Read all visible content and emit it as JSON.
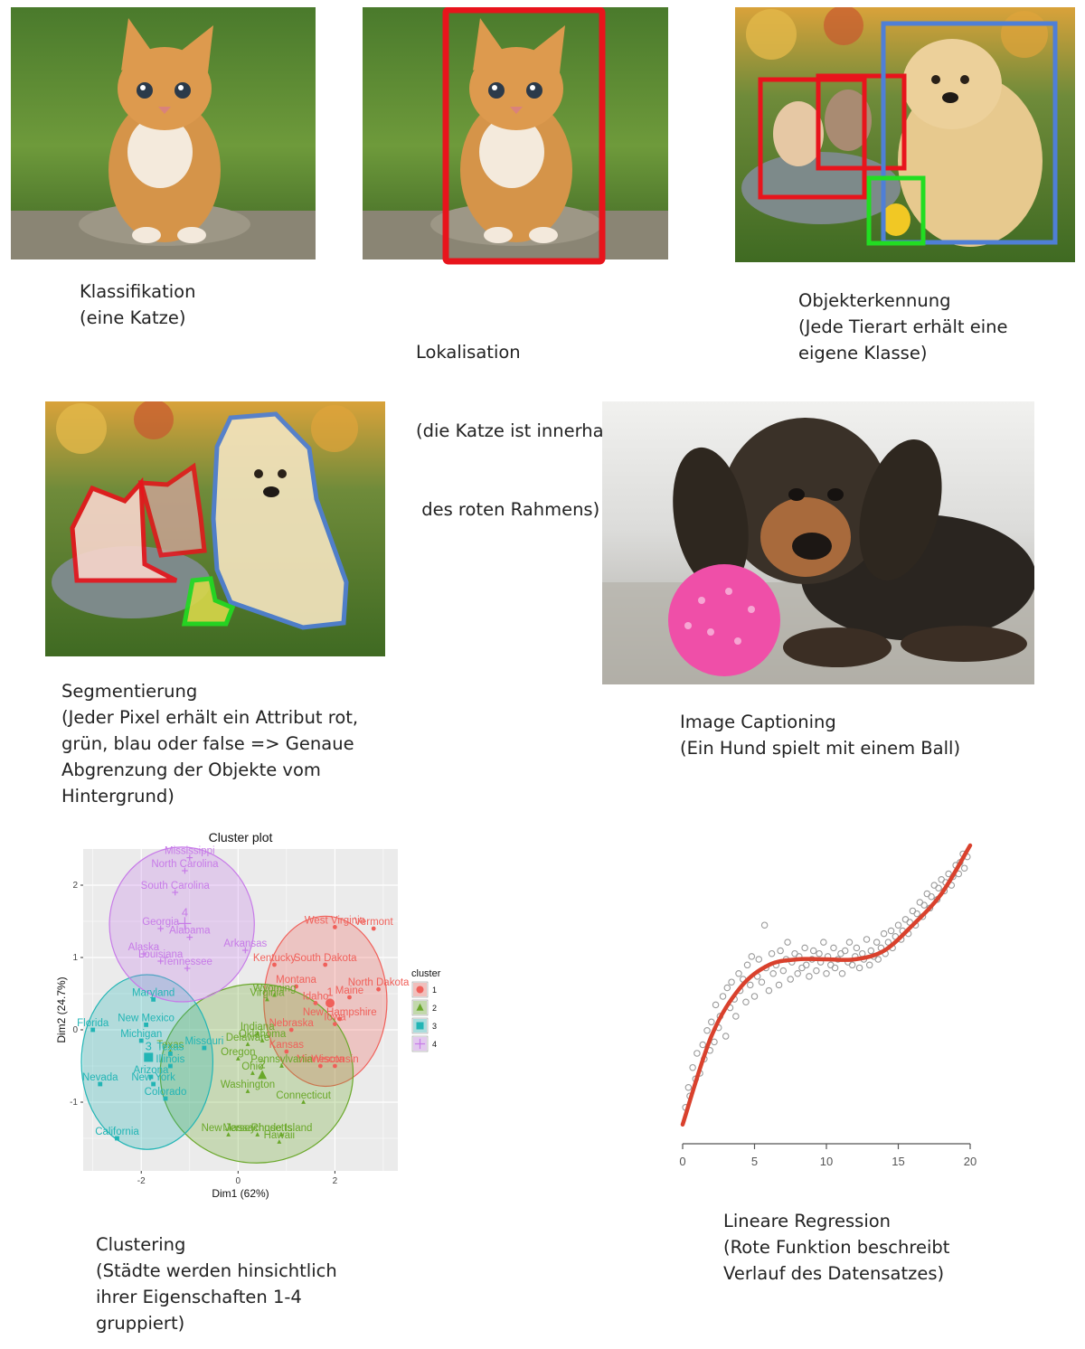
{
  "colors": {
    "bbox_red": "#e8141c",
    "bbox_blue": "#4f7fd6",
    "bbox_green": "#22dd22",
    "cluster1": "#f0605a",
    "cluster2": "#6aa82a",
    "cluster3": "#22b5b5",
    "cluster4": "#c77be8",
    "regression_line": "#d9412d",
    "regression_points": "#9b9b9b"
  },
  "images": {
    "classification": {
      "icon": "kitten-photo"
    },
    "localization": {
      "icon": "kitten-photo-with-red-box"
    },
    "detection": {
      "icon": "cats-puppy-duck-photo-with-boxes"
    },
    "segmentation": {
      "icon": "cats-puppy-duck-photo-with-masks"
    },
    "captioning": {
      "icon": "dachshund-puppy-with-pink-ball-photo"
    }
  },
  "captions": {
    "classification": [
      "Klassifikation",
      "(eine Katze)"
    ],
    "localization": [
      "Lokalisation",
      "(die Katze ist innerhalb",
      " des roten Rahmens)"
    ],
    "detection": [
      "Objekterkennung",
      "(Jede Tierart erhält eine",
      "eigene Klasse)"
    ],
    "segmentation": [
      "Segmentierung",
      "(Jeder Pixel erhält ein Attribut rot,",
      "grün, blau oder false => Genaue",
      "Abgrenzung der Objekte vom",
      "Hintergrund)"
    ],
    "captioning": [
      "Image Captioning",
      "(Ein Hund spielt mit einem Ball)"
    ],
    "clustering": [
      "Clustering",
      "(Städte werden hinsichtlich",
      "ihrer Eigenschaften 1-4",
      "gruppiert)"
    ],
    "regression": [
      "Lineare Regression",
      "(Rote Funktion beschreibt",
      "Verlauf des Datensatzes)"
    ]
  },
  "chart_data": [
    {
      "type": "scatter",
      "title": "Cluster plot",
      "xlabel": "Dim1 (62%)",
      "ylabel": "Dim2 (24.7%)",
      "xticks": [
        -2,
        0,
        2
      ],
      "yticks": [
        -1,
        0,
        1,
        2
      ],
      "xlim": [
        -3.2,
        3.3
      ],
      "ylim": [
        -1.95,
        2.5
      ],
      "grid": true,
      "legend": {
        "title": "cluster",
        "position": "right",
        "entries": [
          "1",
          "2",
          "3",
          "4"
        ]
      },
      "series": [
        {
          "name": "1",
          "marker": "circle",
          "centroid_label": "1",
          "centroid": [
            1.9,
            0.37
          ],
          "points": [
            {
              "label": "West Virginia",
              "x": 2.0,
              "y": 1.42
            },
            {
              "label": "Vermont",
              "x": 2.8,
              "y": 1.4
            },
            {
              "label": "South Dakota",
              "x": 1.8,
              "y": 0.9
            },
            {
              "label": "North Dakota",
              "x": 2.9,
              "y": 0.56
            },
            {
              "label": "Montana",
              "x": 1.2,
              "y": 0.6
            },
            {
              "label": "Maine",
              "x": 2.3,
              "y": 0.45
            },
            {
              "label": "Idaho",
              "x": 1.6,
              "y": 0.37
            },
            {
              "label": "New Hampshire",
              "x": 2.1,
              "y": 0.15
            },
            {
              "label": "Iowa",
              "x": 2.0,
              "y": 0.08
            },
            {
              "label": "Nebraska",
              "x": 1.1,
              "y": 0.0
            },
            {
              "label": "Kansas",
              "x": 1.0,
              "y": -0.3
            },
            {
              "label": "Minnesota",
              "x": 1.7,
              "y": -0.5
            },
            {
              "label": "Wisconsin",
              "x": 2.0,
              "y": -0.5
            },
            {
              "label": "Kentucky",
              "x": 0.75,
              "y": 0.9
            }
          ]
        },
        {
          "name": "2",
          "marker": "triangle",
          "centroid_label": "2",
          "centroid": [
            0.5,
            -0.63
          ],
          "points": [
            {
              "label": "Virginia",
              "x": 0.6,
              "y": 0.42
            },
            {
              "label": "Wyoming",
              "x": 0.75,
              "y": 0.48
            },
            {
              "label": "Indiana",
              "x": 0.4,
              "y": -0.05
            },
            {
              "label": "Delaware",
              "x": 0.2,
              "y": -0.2
            },
            {
              "label": "Oklahoma",
              "x": 0.5,
              "y": -0.15
            },
            {
              "label": "Texas",
              "x": -1.4,
              "y": -0.3
            },
            {
              "label": "Oregon",
              "x": 0.0,
              "y": -0.4
            },
            {
              "label": "Pennsylvania",
              "x": 0.9,
              "y": -0.5
            },
            {
              "label": "Ohio",
              "x": 0.3,
              "y": -0.6
            },
            {
              "label": "Washington",
              "x": 0.2,
              "y": -0.85
            },
            {
              "label": "Connecticut",
              "x": 1.35,
              "y": -1.0
            },
            {
              "label": "New Jersey",
              "x": -0.2,
              "y": -1.45
            },
            {
              "label": "Massachusetts",
              "x": 0.4,
              "y": -1.45
            },
            {
              "label": "Rhode Island",
              "x": 0.9,
              "y": -1.45
            },
            {
              "label": "Hawaii",
              "x": 0.85,
              "y": -1.55
            }
          ]
        },
        {
          "name": "3",
          "marker": "square",
          "centroid_label": "3",
          "centroid": [
            -1.85,
            -0.38
          ],
          "points": [
            {
              "label": "Maryland",
              "x": -1.75,
              "y": 0.42
            },
            {
              "label": "Florida",
              "x": -3.0,
              "y": 0.0
            },
            {
              "label": "New Mexico",
              "x": -1.9,
              "y": 0.07
            },
            {
              "label": "Michigan",
              "x": -2.0,
              "y": -0.15
            },
            {
              "label": "Texas",
              "x": -1.4,
              "y": -0.33
            },
            {
              "label": "Missouri",
              "x": -0.7,
              "y": -0.25
            },
            {
              "label": "Illinois",
              "x": -1.4,
              "y": -0.5
            },
            {
              "label": "Arizona",
              "x": -1.8,
              "y": -0.65
            },
            {
              "label": "New York",
              "x": -1.75,
              "y": -0.75
            },
            {
              "label": "Colorado",
              "x": -1.5,
              "y": -0.95
            },
            {
              "label": "Nevada",
              "x": -2.85,
              "y": -0.75
            },
            {
              "label": "California",
              "x": -2.5,
              "y": -1.5
            }
          ]
        },
        {
          "name": "4",
          "marker": "plus",
          "centroid_label": "4",
          "centroid": [
            -1.1,
            1.47
          ],
          "points": [
            {
              "label": "Mississippi",
              "x": -1.0,
              "y": 2.38
            },
            {
              "label": "North Carolina",
              "x": -1.1,
              "y": 2.2
            },
            {
              "label": "South Carolina",
              "x": -1.3,
              "y": 1.9
            },
            {
              "label": "Georgia",
              "x": -1.6,
              "y": 1.4
            },
            {
              "label": "Alabama",
              "x": -1.0,
              "y": 1.28
            },
            {
              "label": "Alaska",
              "x": -1.95,
              "y": 1.05
            },
            {
              "label": "Arkansas",
              "x": 0.15,
              "y": 1.1
            },
            {
              "label": "Louisiana",
              "x": -1.6,
              "y": 0.95
            },
            {
              "label": "Tennessee",
              "x": -1.05,
              "y": 0.85
            }
          ]
        }
      ]
    },
    {
      "type": "scatter",
      "title": "",
      "xlabel": "",
      "ylabel": "",
      "xticks": [
        0,
        5,
        10,
        15,
        20
      ],
      "xlim": [
        0,
        20
      ],
      "ylim": [
        0,
        1
      ],
      "grid": false,
      "series": [
        {
          "marker": "open-circle",
          "x": [
            0.2,
            0.4,
            0.5,
            0.7,
            0.9,
            1.0,
            1.2,
            1.4,
            1.5,
            1.7,
            1.9,
            2.0,
            2.2,
            2.3,
            2.5,
            2.6,
            2.8,
            3.0,
            3.1,
            3.3,
            3.4,
            3.6,
            3.7,
            3.9,
            4.0,
            4.2,
            4.4,
            4.5,
            4.7,
            4.8,
            5.0,
            5.2,
            5.3,
            5.5,
            5.7,
            5.8,
            6.0,
            6.2,
            6.3,
            6.5,
            6.7,
            6.8,
            7.0,
            7.2,
            7.3,
            7.5,
            7.6,
            7.8,
            8.0,
            8.1,
            8.3,
            8.5,
            8.6,
            8.8,
            9.0,
            9.1,
            9.3,
            9.5,
            9.6,
            9.8,
            10.0,
            10.1,
            10.3,
            10.5,
            10.6,
            10.8,
            11.0,
            11.1,
            11.3,
            11.5,
            11.6,
            11.8,
            12.0,
            12.1,
            12.3,
            12.5,
            12.6,
            12.8,
            13.0,
            13.1,
            13.3,
            13.5,
            13.6,
            13.8,
            14.0,
            14.1,
            14.3,
            14.5,
            14.6,
            14.8,
            15.0,
            15.2,
            15.3,
            15.5,
            15.7,
            15.8,
            16.0,
            16.2,
            16.3,
            16.5,
            16.7,
            16.8,
            17.0,
            17.2,
            17.3,
            17.5,
            17.7,
            17.8,
            18.0,
            18.2,
            18.3,
            18.5,
            18.7,
            18.8,
            19.0,
            19.2,
            19.3,
            19.5,
            19.6,
            19.8
          ],
          "y": [
            0.08,
            0.15,
            0.12,
            0.22,
            0.18,
            0.27,
            0.2,
            0.3,
            0.25,
            0.35,
            0.28,
            0.38,
            0.31,
            0.44,
            0.36,
            0.4,
            0.47,
            0.33,
            0.5,
            0.43,
            0.52,
            0.46,
            0.4,
            0.55,
            0.49,
            0.53,
            0.45,
            0.58,
            0.51,
            0.61,
            0.47,
            0.54,
            0.6,
            0.52,
            0.72,
            0.57,
            0.49,
            0.62,
            0.55,
            0.58,
            0.51,
            0.63,
            0.56,
            0.6,
            0.66,
            0.53,
            0.59,
            0.62,
            0.55,
            0.61,
            0.57,
            0.64,
            0.58,
            0.54,
            0.6,
            0.63,
            0.56,
            0.62,
            0.59,
            0.66,
            0.55,
            0.61,
            0.58,
            0.64,
            0.57,
            0.6,
            0.62,
            0.55,
            0.63,
            0.59,
            0.66,
            0.58,
            0.61,
            0.64,
            0.57,
            0.62,
            0.6,
            0.67,
            0.58,
            0.63,
            0.61,
            0.66,
            0.6,
            0.64,
            0.69,
            0.62,
            0.66,
            0.7,
            0.64,
            0.68,
            0.72,
            0.67,
            0.7,
            0.74,
            0.69,
            0.73,
            0.77,
            0.72,
            0.76,
            0.8,
            0.75,
            0.79,
            0.83,
            0.78,
            0.82,
            0.86,
            0.81,
            0.85,
            0.88,
            0.84,
            0.87,
            0.9,
            0.86,
            0.89,
            0.93,
            0.9,
            0.94,
            0.97,
            0.92,
            0.96
          ]
        },
        {
          "marker": "line",
          "fit": "cubic",
          "x": [
            0,
            2,
            4,
            6,
            8,
            10,
            12,
            14,
            16,
            18,
            20
          ],
          "y": [
            0.02,
            0.33,
            0.5,
            0.58,
            0.6,
            0.6,
            0.6,
            0.63,
            0.72,
            0.83,
            1.0
          ]
        }
      ]
    }
  ]
}
